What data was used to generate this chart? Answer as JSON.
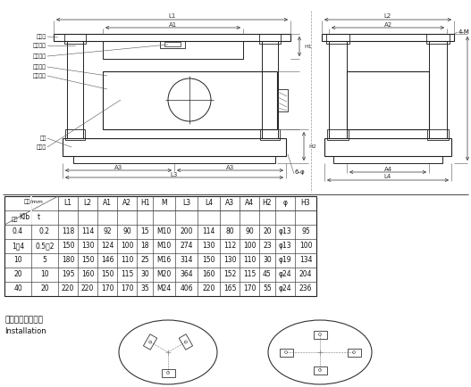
{
  "bg_color": "#ffffff",
  "table_data": [
    [
      "0.4",
      "0.2",
      "118",
      "114",
      "92",
      "90",
      "15",
      "M10",
      "200",
      "114",
      "80",
      "90",
      "20",
      "φ13",
      "95"
    ],
    [
      "1～4",
      "0.5～2",
      "150",
      "130",
      "124",
      "100",
      "18",
      "M10",
      "274",
      "130",
      "112",
      "100",
      "23",
      "φ13",
      "100"
    ],
    [
      "10",
      "5",
      "180",
      "150",
      "146",
      "110",
      "25",
      "M16",
      "314",
      "150",
      "130",
      "110",
      "30",
      "φ19",
      "134"
    ],
    [
      "20",
      "10",
      "195",
      "160",
      "150",
      "115",
      "30",
      "M20",
      "364",
      "160",
      "152",
      "115",
      "45",
      "φ24",
      "204"
    ],
    [
      "40",
      "20",
      "220",
      "220",
      "170",
      "170",
      "35",
      "M24",
      "406",
      "220",
      "165",
      "170",
      "55",
      "φ24",
      "236"
    ]
  ],
  "col_headers": [
    "L1",
    "L2",
    "A1",
    "A2",
    "H1",
    "M",
    "L3",
    "L4",
    "A3",
    "A4",
    "H2",
    "φ",
    "H3"
  ],
  "text_color": "#111111",
  "line_color": "#222222",
  "dim_color": "#333333",
  "label_color": "#444444"
}
